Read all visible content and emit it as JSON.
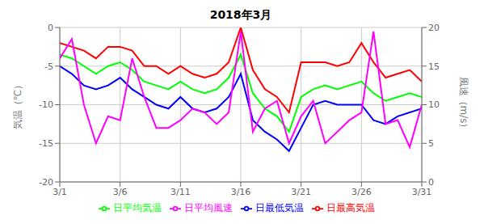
{
  "chart_data": {
    "type": "line",
    "title": "2018年3月",
    "x": [
      1,
      2,
      3,
      4,
      5,
      6,
      7,
      8,
      9,
      10,
      11,
      12,
      13,
      14,
      15,
      16,
      17,
      18,
      19,
      20,
      21,
      22,
      23,
      24,
      25,
      26,
      27,
      28,
      29,
      30,
      31
    ],
    "xlim": [
      1,
      31
    ],
    "xticks": [
      {
        "value": 1,
        "label": "3/1"
      },
      {
        "value": 6,
        "label": "3/6"
      },
      {
        "value": 11,
        "label": "3/11"
      },
      {
        "value": 16,
        "label": "3/16"
      },
      {
        "value": 21,
        "label": "3/21"
      },
      {
        "value": 26,
        "label": "3/26"
      },
      {
        "value": 31,
        "label": "3/31"
      }
    ],
    "ylabel": "気温（℃）",
    "y2label": "風速（m/s）",
    "ylim": [
      -20,
      0
    ],
    "yticks": [
      0,
      -5,
      -10,
      -15,
      -20
    ],
    "y2lim": [
      0,
      20
    ],
    "y2ticks": [
      0,
      5,
      10,
      15,
      20
    ],
    "grid": true,
    "legend": "bottom",
    "series": [
      {
        "name": "日平均気温",
        "color": "#00ff00",
        "values": [
          -3.5,
          -4.0,
          -5.0,
          -6.0,
          -5.0,
          -4.5,
          -5.5,
          -7.0,
          -7.5,
          -8.0,
          -7.0,
          -8.0,
          -8.5,
          -8.0,
          -6.5,
          -3.5,
          -8.5,
          -10.5,
          -11.5,
          -13.5,
          -9.0,
          -8.0,
          -7.5,
          -8.0,
          -7.5,
          -7.0,
          -8.5,
          -9.5,
          -9.0,
          -8.5,
          -9.0
        ]
      },
      {
        "name": "日最高気温",
        "color": "#ff0000",
        "values": [
          -2.0,
          -2.5,
          -3.0,
          -4.0,
          -2.5,
          -2.5,
          -3.0,
          -5.0,
          -5.0,
          -6.0,
          -5.0,
          -6.0,
          -6.5,
          -6.0,
          -4.5,
          0.0,
          -5.5,
          -8.0,
          -9.0,
          -11.0,
          -4.5,
          -4.5,
          -4.5,
          -5.0,
          -4.5,
          -2.0,
          -4.5,
          -6.5,
          -6.0,
          -5.5,
          -7.0
        ]
      },
      {
        "name": "日最低気温",
        "color": "#0000ff",
        "values": [
          -5.0,
          -6.0,
          -7.5,
          -8.0,
          -7.5,
          -6.5,
          -8.0,
          -9.0,
          -10.0,
          -10.5,
          -9.0,
          -10.5,
          -11.0,
          -10.5,
          -9.0,
          -6.0,
          -12.0,
          -13.5,
          -14.5,
          -16.0,
          -13.0,
          -10.0,
          -9.5,
          -10.0,
          -10.0,
          -10.0,
          -12.0,
          -12.5,
          -11.5,
          -11.0,
          -10.5
        ]
      },
      {
        "name": "日平均風速",
        "color": "#ff00ff",
        "axis": "y2",
        "values": [
          16.0,
          18.5,
          10.0,
          5.0,
          8.5,
          8.0,
          16.0,
          11.0,
          7.0,
          7.0,
          8.0,
          9.5,
          9.0,
          7.5,
          9.0,
          19.5,
          6.5,
          9.5,
          10.5,
          5.0,
          8.5,
          10.5,
          5.0,
          6.5,
          8.0,
          9.0,
          19.5,
          7.5,
          8.0,
          4.5,
          10.0
        ]
      }
    ]
  }
}
